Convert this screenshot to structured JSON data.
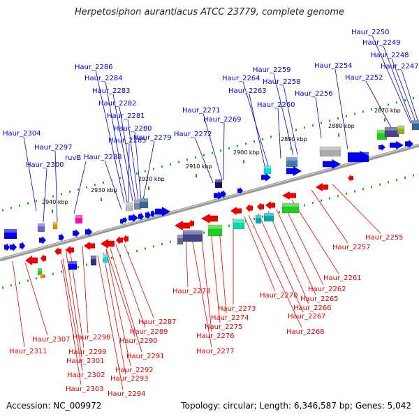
{
  "title": "Herpetosiphon aurantiacus ATCC 23779, complete genome",
  "footer": {
    "accession": "Accession: NC_009972",
    "topology": "Topology: circular; Length: 6,346,587 bp; Genes: 5,042"
  },
  "colors": {
    "top_label": "#0000cc",
    "bottom_label": "#dd0000",
    "forward_arrow": "#0000ee",
    "reverse_arrow": "#ee0000",
    "tick_dot": "#11aa11",
    "backbone": "#888888"
  },
  "scale_ticks": [
    "2870 kbp",
    "2880 kbp",
    "2890 kbp",
    "2900 kbp",
    "2910 kbp",
    "2920 kbp",
    "2930 kbp",
    "2940 kbp"
  ],
  "top_labels": [
    "Haur_2250",
    "Haur_2249",
    "Haur_2248",
    "Haur_2247",
    "Haur_2254",
    "Haur_2252",
    "Haur_2259",
    "Haur_2258",
    "Haur_2264",
    "Haur_2263",
    "Haur_2256",
    "Haur_2260",
    "Haur_2271",
    "Haur_2269",
    "Haur_2272",
    "Haur_2286",
    "Haur_2284",
    "Haur_2283",
    "Haur_2282",
    "Haur_2281",
    "Haur_2280",
    "Haur_2285",
    "Haur_2279",
    "Haur_2288",
    "Haur_2304",
    "Haur_2297",
    "ruvB",
    "Haur_2300"
  ],
  "bottom_labels": [
    "Haur_2255",
    "Haur_2257",
    "Haur_2261",
    "Haur_2262",
    "Haur_2265",
    "Haur_2266",
    "Haur_2267",
    "Haur_2268",
    "Haur_2270",
    "Haur_2273",
    "Haur_2274",
    "Haur_2275",
    "Haur_2276",
    "Haur_2277",
    "Haur_2278",
    "Haur_2287",
    "Haur_2289",
    "Haur_2290",
    "Haur_2291",
    "Haur_2292",
    "Haur_2293",
    "Haur_2294",
    "Haur_2298",
    "Haur_2299",
    "Haur_2301",
    "Haur_2302",
    "Haur_2303",
    "Haur_2307",
    "Haur_2311"
  ]
}
